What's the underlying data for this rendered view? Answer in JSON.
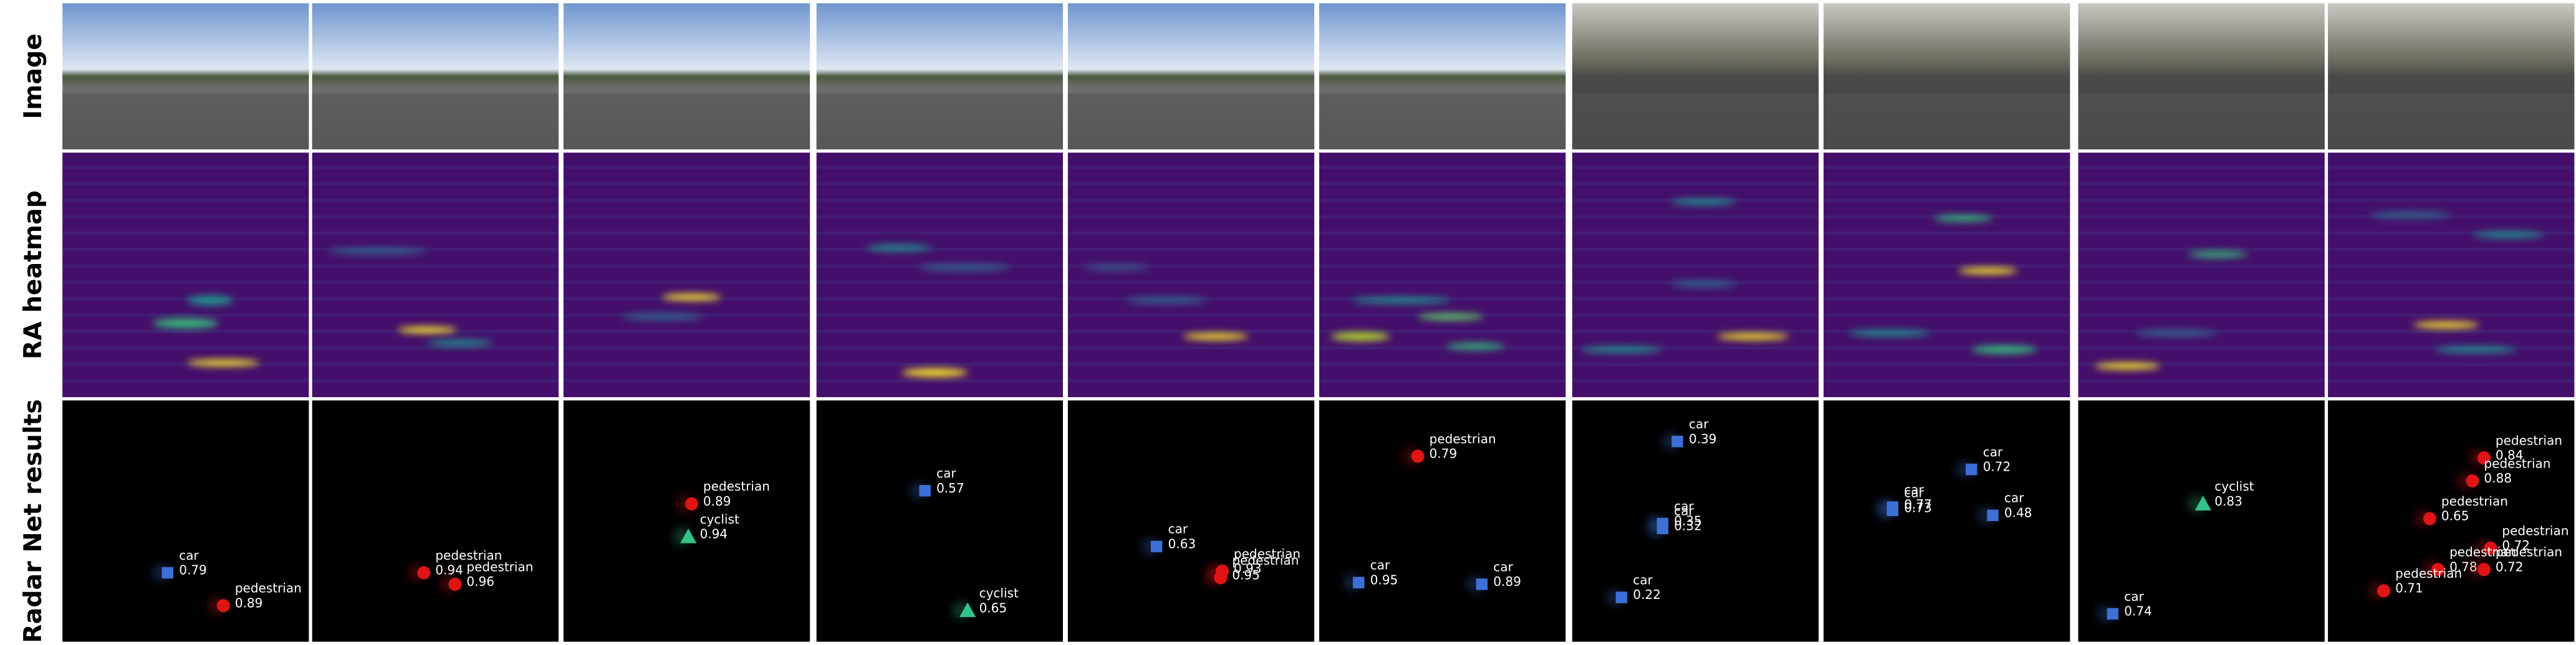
{
  "row_labels": [
    "Image",
    "RA heatmap",
    "Radar Net results"
  ],
  "panels": [
    {
      "detections": [
        {
          "label": "car",
          "score": 0.79
        },
        {
          "label": "pedestrian",
          "score": 0.89
        }
      ]
    },
    {
      "detections": [
        {
          "label": "pedestrian",
          "score": 0.94
        },
        {
          "label": "pedestrian",
          "score": 0.96
        }
      ]
    },
    {
      "detections": [
        {
          "label": "pedestrian",
          "score": 0.89
        },
        {
          "label": "cyclist",
          "score": 0.94
        }
      ]
    },
    {
      "detections": [
        {
          "label": "car",
          "score": 0.57
        },
        {
          "label": "cyclist",
          "score": 0.65
        }
      ]
    },
    {
      "detections": [
        {
          "label": "car",
          "score": 0.63
        },
        {
          "label": "pedestrian",
          "score": 0.93
        },
        {
          "label": "pedestrian",
          "score": 0.95
        }
      ]
    },
    {
      "detections": [
        {
          "label": "pedestrian",
          "score": 0.79
        },
        {
          "label": "car",
          "score": 0.95
        },
        {
          "label": "car",
          "score": 0.89
        }
      ]
    },
    {
      "detections": [
        {
          "label": "car",
          "score": 0.39
        },
        {
          "label": "car",
          "score": 0.35
        },
        {
          "label": "car",
          "score": 0.32
        },
        {
          "label": "car",
          "score": 0.22
        }
      ]
    },
    {
      "detections": [
        {
          "label": "car",
          "score": 0.72
        },
        {
          "label": "car",
          "score": 0.77
        },
        {
          "label": "car",
          "score": 0.73
        },
        {
          "label": "car",
          "score": 0.48
        }
      ]
    },
    {
      "detections": [
        {
          "label": "cyclist",
          "score": 0.83
        },
        {
          "label": "car",
          "score": 0.74
        }
      ]
    },
    {
      "detections": [
        {
          "label": "pedestrian",
          "score": 0.84
        },
        {
          "label": "pedestrian",
          "score": 0.88
        },
        {
          "label": "pedestrian",
          "score": 0.65
        },
        {
          "label": "pedestrian",
          "score": 0.72
        },
        {
          "label": "pedestrian",
          "score": 0.78
        },
        {
          "label": "pedestrian",
          "score": 0.72
        },
        {
          "label": "pedestrian",
          "score": 0.71
        }
      ]
    }
  ]
}
